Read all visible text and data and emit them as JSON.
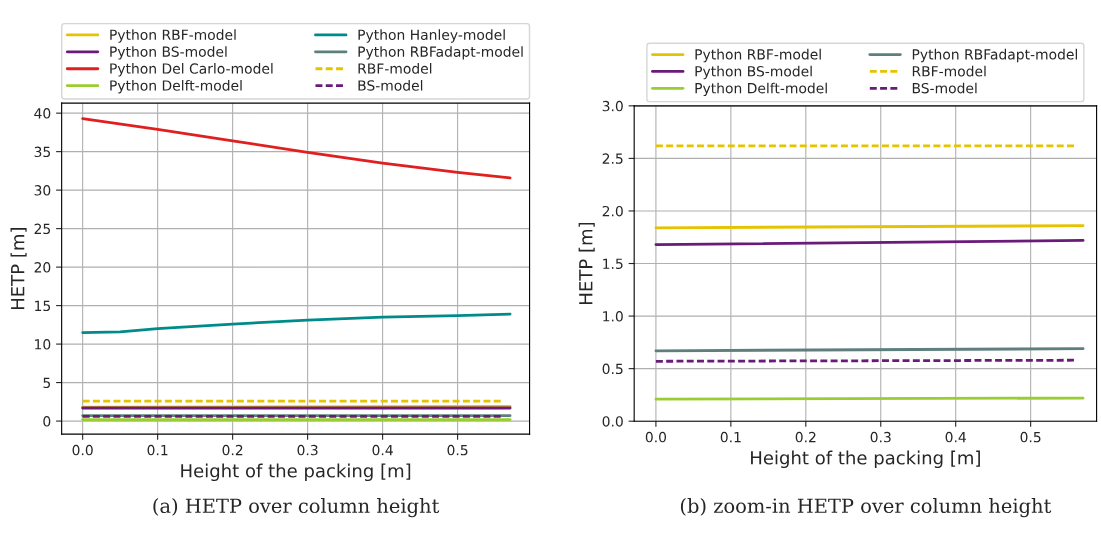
{
  "chart_data": [
    {
      "type": "line",
      "xlabel": "Height of the packing [m]",
      "ylabel": "HETP [m]",
      "annotations": [
        "(a) HETP over column height"
      ],
      "xlim": [
        -0.028,
        0.596
      ],
      "ylim": [
        -1.7,
        41.3
      ],
      "xticks": [
        {
          "value": 0,
          "label": "0.0"
        },
        0.1,
        0.2,
        0.3,
        0.4,
        0.5
      ],
      "yticks": [
        0,
        5,
        10,
        15,
        20,
        25,
        30,
        35,
        40
      ],
      "grid": true,
      "legend": "top",
      "marker": "none",
      "series": [
        {
          "name": "Python RBF-model",
          "color": "#e6c300",
          "line_style": "solid",
          "x": [
            0,
            0.57
          ],
          "values": [
            1.8,
            1.9
          ]
        },
        {
          "name": "Python BS-model",
          "color": "#6a1b7a",
          "line_style": "solid",
          "x": [
            0,
            0.57
          ],
          "values": [
            1.7,
            1.7
          ]
        },
        {
          "name": "Python Del Carlo-model",
          "color": "#e02020",
          "line_style": "solid",
          "x": [
            0,
            0.1,
            0.2,
            0.3,
            0.4,
            0.5,
            0.57
          ],
          "values": [
            39.3,
            37.9,
            36.4,
            34.9,
            33.5,
            32.3,
            31.6
          ]
        },
        {
          "name": "Python Delft-model",
          "color": "#9acd32",
          "line_style": "solid",
          "x": [
            0,
            0.57
          ],
          "values": [
            0.2,
            0.2
          ]
        },
        {
          "name": "Python Hanley-model",
          "color": "#008b8b",
          "line_style": "solid",
          "x": [
            0,
            0.05,
            0.1,
            0.2,
            0.3,
            0.4,
            0.5,
            0.57
          ],
          "values": [
            11.5,
            11.6,
            12.0,
            12.6,
            13.1,
            13.5,
            13.7,
            13.9
          ]
        },
        {
          "name": "Python RBFadapt-model",
          "color": "#5f7f7f",
          "line_style": "solid",
          "x": [
            0,
            0.57
          ],
          "values": [
            0.7,
            0.7
          ]
        },
        {
          "name": "RBF-model",
          "color": "#e6c300",
          "line_style": "dashed",
          "x": [
            0,
            0.56
          ],
          "values": [
            2.6,
            2.6
          ]
        },
        {
          "name": "BS-model",
          "color": "#6a1b7a",
          "line_style": "dashed",
          "x": [
            0,
            0.56
          ],
          "values": [
            0.6,
            0.6
          ]
        }
      ]
    },
    {
      "type": "line",
      "xlabel": "Height of the packing [m]",
      "ylabel": "HETP [m]",
      "annotations": [
        "(b) zoom-in HETP over column height"
      ],
      "xlim": [
        -0.029,
        0.588
      ],
      "ylim": [
        0.0,
        3.0
      ],
      "xticks": [
        {
          "value": 0,
          "label": "0.0"
        },
        0.1,
        0.2,
        0.3,
        0.4,
        0.5
      ],
      "yticks": [
        {
          "value": 0,
          "label": "0.0"
        },
        0.5,
        {
          "value": 1,
          "label": "1.0"
        },
        1.5,
        {
          "value": 2,
          "label": "2.0"
        },
        2.5,
        {
          "value": 3,
          "label": "3.0"
        }
      ],
      "grid": true,
      "legend": "top",
      "marker": "none",
      "series": [
        {
          "name": "Python RBF-model",
          "color": "#e6c300",
          "line_style": "solid",
          "x": [
            0,
            0.57
          ],
          "values": [
            1.84,
            1.86
          ]
        },
        {
          "name": "Python BS-model",
          "color": "#6a1b7a",
          "line_style": "solid",
          "x": [
            0,
            0.57
          ],
          "values": [
            1.68,
            1.72
          ]
        },
        {
          "name": "Python Delft-model",
          "color": "#9acd32",
          "line_style": "solid",
          "x": [
            0,
            0.57
          ],
          "values": [
            0.21,
            0.22
          ]
        },
        {
          "name": "Python RBFadapt-model",
          "color": "#5f7f7f",
          "line_style": "solid",
          "x": [
            0,
            0.57
          ],
          "values": [
            0.67,
            0.69
          ]
        },
        {
          "name": "RBF-model",
          "color": "#e6c300",
          "line_style": "dashed",
          "x": [
            0,
            0.56
          ],
          "values": [
            2.62,
            2.62
          ]
        },
        {
          "name": "BS-model",
          "color": "#6a1b7a",
          "line_style": "dashed",
          "x": [
            0,
            0.56
          ],
          "values": [
            0.57,
            0.58
          ]
        }
      ]
    }
  ]
}
